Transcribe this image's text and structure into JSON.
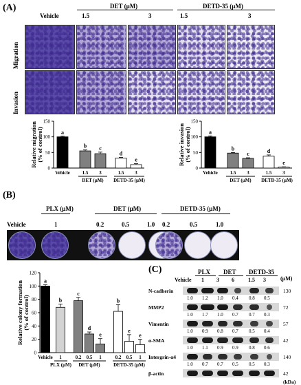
{
  "panel_a": {
    "label": "(A)",
    "columns": {
      "vehicle": "Vehicle",
      "det": "DET (μM)",
      "detd": "DETD-35 (μM)",
      "d1": "1.5",
      "d2": "3",
      "d3": "1.5",
      "d4": "3"
    },
    "rows": {
      "migration": "Migration",
      "invasion": "Invasion"
    }
  },
  "panel_b": {
    "label": "(B)",
    "headers": {
      "plx": "PLX (μM)",
      "det": "DET (μM)",
      "detd": "DETD-35 (μM)"
    },
    "doses": {
      "vehicle": "Vehicle",
      "plx": "1",
      "det1": "0.2",
      "det2": "0.5",
      "det3": "1.0",
      "dd1": "0.2",
      "dd2": "0.5",
      "dd3": "1.0"
    }
  },
  "panel_c": {
    "label": "(C)",
    "groups": {
      "plx": "PLX",
      "det": "DET",
      "detd": "DETD-35",
      "unit": "(μM)"
    },
    "lanes": [
      "Vehicle",
      "1",
      "3",
      "6",
      "1.5",
      "3"
    ],
    "kda_label": "(kDa)",
    "blots": [
      {
        "name": "N-cadherin",
        "kda": "130",
        "quant": [
          "1.0",
          "1.2",
          "1.0",
          "0.4",
          "0.8",
          "0.5"
        ]
      },
      {
        "name": "MMP2",
        "kda": "72",
        "quant": [
          "1.0",
          "1.7",
          "1.0",
          "0.7",
          "0.7",
          "0.3"
        ]
      },
      {
        "name": "Vimentin",
        "kda": "57",
        "quant": [
          "1.0",
          "0.9",
          "0.8",
          "0.7",
          "0.5",
          "0.4"
        ]
      },
      {
        "name": "α-SMA",
        "kda": "42",
        "quant": [
          "1.0",
          "1.1",
          "0.9",
          "0.9",
          "0.8",
          "0.6"
        ]
      },
      {
        "name": "Intergrin-α4",
        "kda": "140",
        "quant": [
          "1.0",
          "0.7",
          "0.7",
          "0.5",
          "0.5",
          "0.3"
        ]
      },
      {
        "name": "β-actin",
        "kda": "42",
        "quant": []
      }
    ]
  },
  "chart_data": [
    {
      "type": "bar",
      "ylabel": "Relative migration\n(% of control)",
      "ylim": [
        0,
        150
      ],
      "yticks": [
        "0",
        "50",
        "100",
        "150"
      ],
      "categories": [
        "Vehicle",
        "1.5",
        "3",
        "1.5",
        "3"
      ],
      "groups": [
        "DET (μM)",
        "DETD-35 (μM)"
      ],
      "values": [
        100,
        55,
        46,
        32,
        11
      ],
      "errors": [
        2,
        3,
        5,
        2,
        3
      ],
      "letters": [
        "a",
        "b",
        "c",
        "d",
        "e"
      ],
      "colors": [
        "#000000",
        "#808080",
        "#808080",
        "#ffffff",
        "#ffffff"
      ]
    },
    {
      "type": "bar",
      "ylabel": "Relative invasion\n(% of control)",
      "ylim": [
        0,
        150
      ],
      "yticks": [
        "0",
        "50",
        "100",
        "150"
      ],
      "categories": [
        "Vehicle",
        "1.5",
        "3",
        "1.5",
        "3"
      ],
      "groups": [
        "DET (μM)",
        "DETD-35 (μM)"
      ],
      "values": [
        100,
        48,
        31,
        38,
        3
      ],
      "errors": [
        3,
        2,
        2,
        4,
        1
      ],
      "letters": [
        "a",
        "b",
        "c",
        "d",
        "e"
      ],
      "colors": [
        "#000000",
        "#808080",
        "#808080",
        "#ffffff",
        "#ffffff"
      ]
    },
    {
      "type": "bar",
      "ylabel": "Relative colony formation\n(% of control)",
      "ylim": [
        0,
        120
      ],
      "yticks": [
        "0",
        "20",
        "40",
        "60",
        "80",
        "100",
        "120"
      ],
      "categories": [
        "Vehicle",
        "1",
        "0.2",
        "0.5",
        "1",
        "0.2",
        "0.5",
        "1"
      ],
      "groups": [
        "PLX (μM)",
        "DET (μM)",
        "DETD-35 (μM)"
      ],
      "values": [
        100,
        68,
        78,
        28,
        13,
        62,
        17,
        12
      ],
      "errors": [
        2,
        5,
        5,
        3,
        8,
        10,
        10,
        8
      ],
      "letters": [
        "a",
        "b",
        "c",
        "d",
        "e",
        "b",
        "e",
        "e"
      ],
      "colors": [
        "#000000",
        "#d3d3d3",
        "#808080",
        "#808080",
        "#808080",
        "#ffffff",
        "#ffffff",
        "#ffffff"
      ]
    }
  ]
}
